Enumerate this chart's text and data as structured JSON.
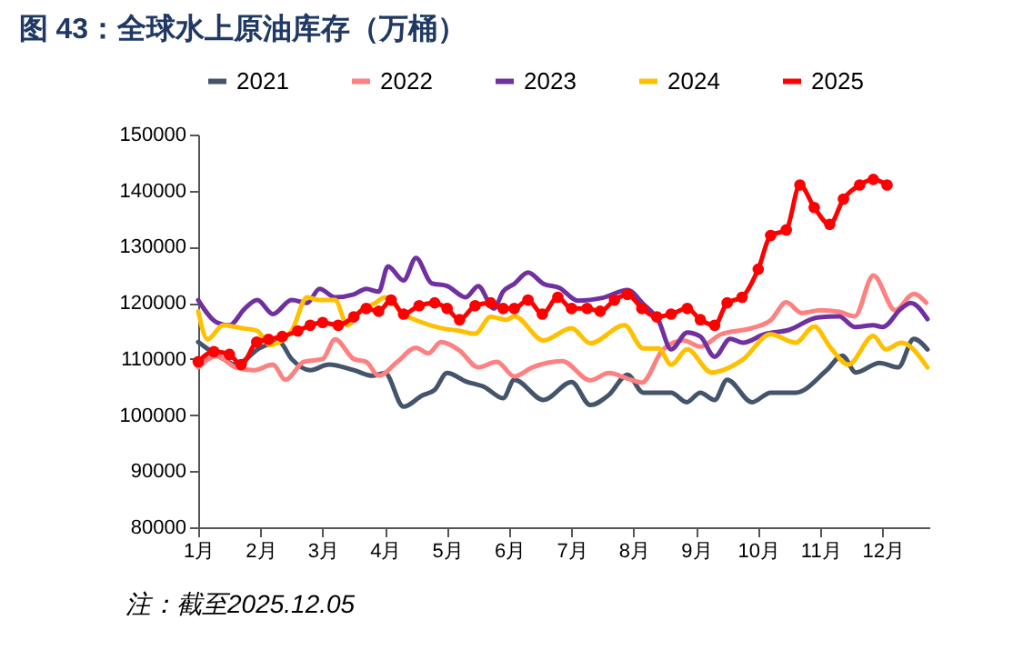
{
  "chart_data": {
    "type": "line",
    "title": "图 43：全球水上原油库存（万桶）",
    "annotations": [
      "注：截至2025.12.05"
    ],
    "xlim": [
      1,
      12.75
    ],
    "xticks": [
      {
        "value": 1,
        "label": "1月"
      },
      {
        "value": 2,
        "label": "2月"
      },
      {
        "value": 3,
        "label": "3月"
      },
      {
        "value": 4,
        "label": "4月"
      },
      {
        "value": 5,
        "label": "5月"
      },
      {
        "value": 6,
        "label": "6月"
      },
      {
        "value": 7,
        "label": "7月"
      },
      {
        "value": 8,
        "label": "8月"
      },
      {
        "value": 9,
        "label": "9月"
      },
      {
        "value": 10,
        "label": "10月"
      },
      {
        "value": 11,
        "label": "11月"
      },
      {
        "value": 12,
        "label": "12月"
      }
    ],
    "ylim": [
      80000,
      150000
    ],
    "yticks": [
      80000,
      90000,
      100000,
      110000,
      120000,
      130000,
      140000,
      150000
    ],
    "grid": false,
    "legend": "top",
    "series": [
      {
        "name": "2021",
        "color": "#44546a",
        "marker": "none",
        "x": [
          1.0,
          1.4,
          1.6,
          2.0,
          2.3,
          2.5,
          2.8,
          3.1,
          3.5,
          3.8,
          4.0,
          4.3,
          4.6,
          4.8,
          5.0,
          5.3,
          5.6,
          5.9,
          6.08,
          6.55,
          7.0,
          7.3,
          7.6,
          7.9,
          8.15,
          8.6,
          8.85,
          9.07,
          9.3,
          9.5,
          9.9,
          10.2,
          10.6,
          11.1,
          11.35,
          11.57,
          11.95,
          12.25,
          12.5,
          12.72
        ],
        "values": [
          113000,
          110000,
          109000,
          112000,
          113000,
          110000,
          108000,
          109000,
          108000,
          107000,
          107500,
          101500,
          103500,
          104500,
          107500,
          106000,
          105000,
          103000,
          106300,
          102700,
          105900,
          101800,
          103600,
          107200,
          104000,
          104000,
          102300,
          104000,
          102700,
          106300,
          102300,
          104000,
          104000,
          108000,
          110600,
          107600,
          109300,
          108500,
          113600,
          111700
        ]
      },
      {
        "name": "2022",
        "color": "#ff8080",
        "marker": "none",
        "x": [
          1.0,
          1.3,
          1.6,
          1.9,
          2.2,
          2.4,
          2.7,
          3.0,
          3.2,
          3.5,
          3.7,
          3.9,
          4.2,
          4.5,
          4.7,
          4.9,
          5.2,
          5.5,
          5.8,
          6.08,
          6.37,
          6.85,
          7.3,
          7.6,
          7.95,
          8.13,
          8.47,
          8.8,
          9.07,
          9.4,
          9.9,
          10.2,
          10.45,
          10.7,
          11.0,
          11.3,
          11.55,
          11.85,
          12.2,
          12.5,
          12.7
        ],
        "values": [
          108500,
          110500,
          108500,
          108000,
          109000,
          106300,
          109500,
          110000,
          113500,
          110000,
          109500,
          107000,
          109500,
          112000,
          111000,
          113000,
          111500,
          108500,
          109500,
          106900,
          108500,
          109600,
          106200,
          107500,
          106300,
          105800,
          111700,
          113300,
          112200,
          114400,
          115500,
          116900,
          120100,
          118200,
          118700,
          118400,
          117600,
          124900,
          118700,
          121600,
          120000
        ]
      },
      {
        "name": "2023",
        "color": "#7030a0",
        "marker": "none",
        "x": [
          1.0,
          1.3,
          1.5,
          1.75,
          1.95,
          2.2,
          2.5,
          2.75,
          2.95,
          3.2,
          3.5,
          3.7,
          3.9,
          4.05,
          4.3,
          4.5,
          4.75,
          5.0,
          5.3,
          5.5,
          5.75,
          5.9,
          6.08,
          6.3,
          6.55,
          6.8,
          7.1,
          7.5,
          7.9,
          8.15,
          8.4,
          8.6,
          8.86,
          9.07,
          9.3,
          9.55,
          9.75,
          10.1,
          10.5,
          10.95,
          11.3,
          11.55,
          11.85,
          12.0,
          12.3,
          12.45,
          12.72
        ],
        "values": [
          120500,
          116500,
          116000,
          119000,
          120500,
          118000,
          120500,
          120000,
          122500,
          121000,
          121500,
          122500,
          122000,
          126500,
          124000,
          128000,
          123500,
          123000,
          121000,
          123000,
          119000,
          122000,
          123400,
          125400,
          123400,
          122700,
          120400,
          120900,
          122300,
          119800,
          116800,
          111700,
          114700,
          114000,
          110400,
          113600,
          112900,
          114400,
          115200,
          117400,
          117600,
          115700,
          116000,
          115700,
          119000,
          120000,
          117100
        ]
      },
      {
        "name": "2024",
        "color": "#ffc000",
        "marker": "none",
        "x": [
          1.0,
          1.15,
          1.4,
          1.7,
          1.95,
          2.15,
          2.5,
          2.75,
          2.95,
          3.2,
          3.4,
          3.6,
          3.85,
          4.0,
          4.3,
          4.6,
          4.9,
          5.2,
          5.45,
          5.7,
          5.95,
          6.08,
          6.55,
          7.0,
          7.3,
          7.85,
          8.15,
          8.4,
          8.6,
          8.86,
          9.25,
          9.74,
          10.2,
          10.6,
          10.9,
          11.15,
          11.45,
          11.85,
          12.05,
          12.3,
          12.72
        ],
        "values": [
          118500,
          113500,
          116000,
          115500,
          115000,
          112500,
          115000,
          121000,
          120500,
          120500,
          116000,
          118500,
          120000,
          121000,
          118000,
          116500,
          115500,
          115000,
          114500,
          117500,
          117000,
          117600,
          113300,
          115500,
          112800,
          116000,
          111900,
          111900,
          109000,
          111700,
          107600,
          109800,
          114400,
          112900,
          115800,
          112200,
          109000,
          114100,
          111700,
          112900,
          108500
        ]
      },
      {
        "name": "2025",
        "color": "#ff0000",
        "marker": "circle",
        "x": [
          1.0,
          1.25,
          1.5,
          1.69,
          1.94,
          2.13,
          2.35,
          2.6,
          2.8,
          3.0,
          3.25,
          3.5,
          3.7,
          3.9,
          4.1,
          4.3,
          4.55,
          4.8,
          5.0,
          5.2,
          5.45,
          5.7,
          5.9,
          6.08,
          6.3,
          6.53,
          6.78,
          7.0,
          7.25,
          7.46,
          7.69,
          7.9,
          8.13,
          8.37,
          8.6,
          8.86,
          9.07,
          9.3,
          9.5,
          9.74,
          10.0,
          10.2,
          10.45,
          10.67,
          10.9,
          11.15,
          11.37,
          11.63,
          11.85,
          12.07
        ],
        "values": [
          109500,
          111300,
          110800,
          109000,
          113000,
          113500,
          114000,
          115000,
          116000,
          116500,
          116000,
          117500,
          119000,
          118500,
          120500,
          118000,
          119500,
          120000,
          119000,
          117000,
          119500,
          120000,
          119000,
          119000,
          120500,
          118000,
          121000,
          119000,
          119000,
          118500,
          120500,
          121500,
          119000,
          117500,
          118000,
          119000,
          117000,
          116000,
          120000,
          121000,
          126000,
          132000,
          133000,
          141000,
          137000,
          134000,
          138500,
          141000,
          142000,
          141000
        ]
      }
    ]
  }
}
